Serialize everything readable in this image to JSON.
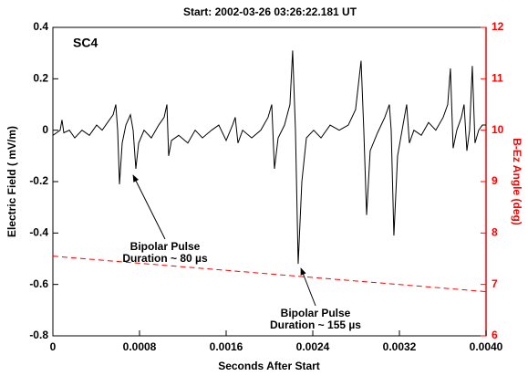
{
  "chart_data": {
    "type": "line",
    "title": "Start:  2002-03-26 03:26:22.181 UT",
    "xlabel": "Seconds After Start",
    "ylabel": "Electric Field ( mV/m)",
    "y2label": "B-Ez Angle (deg)",
    "panel_label": "SC4",
    "annotations": [
      [
        "Bipolar Pulse",
        "Duration ~ 80 µs"
      ],
      [
        "Bipolar Pulse",
        "Duration ~ 155 µs"
      ]
    ],
    "xlim": [
      0,
      0.004
    ],
    "xticks": [
      0,
      0.0008,
      0.0016,
      0.0024,
      0.0032,
      {
        "value": 0.004,
        "label": "0.0040"
      }
    ],
    "ylim": [
      -0.8,
      0.4
    ],
    "yticks": [
      -0.8,
      -0.6,
      -0.4,
      -0.2,
      0,
      0.2,
      0.4
    ],
    "y2lim": [
      6,
      12
    ],
    "y2ticks": [
      6,
      7,
      8,
      9,
      10,
      11,
      12
    ],
    "y2color": "#ff0000",
    "series": [
      {
        "color": "#000000",
        "dashed": false,
        "x": [
          0,
          3.4e-05,
          6.7e-05,
          8.4e-05,
          0.000101,
          0.000152,
          0.000202,
          0.000269,
          0.000337,
          0.000404,
          0.000455,
          0.000505,
          0.000556,
          0.000581,
          0.000598,
          0.000615,
          0.00064,
          0.000674,
          0.000716,
          0.000741,
          0.000766,
          0.000792,
          0.000842,
          0.000909,
          0.000977,
          0.001027,
          0.001053,
          0.001069,
          0.001095,
          0.001162,
          0.001246,
          0.001314,
          0.001381,
          0.001465,
          0.001532,
          0.0016,
          0.001659,
          0.001684,
          0.001709,
          0.001752,
          0.001836,
          0.00192,
          0.001987,
          0.002021,
          0.002046,
          0.00208,
          0.002139,
          0.002189,
          0.002214,
          0.00224,
          0.002265,
          0.002299,
          0.002341,
          0.002408,
          0.002476,
          0.00256,
          0.002644,
          0.002728,
          0.002795,
          0.002846,
          0.002871,
          0.002897,
          0.00293,
          0.002998,
          0.003065,
          0.003107,
          0.003124,
          0.003149,
          0.003183,
          0.003233,
          0.003267,
          0.003292,
          0.003334,
          0.003402,
          0.003469,
          0.003536,
          0.003604,
          0.003646,
          0.003671,
          0.003696,
          0.00373,
          0.003772,
          0.003797,
          0.003823,
          0.003848,
          0.003873,
          0.003898,
          0.003932,
          0.003966,
          0.004
        ],
        "values": [
          -0.02,
          -0.01,
          0.0,
          0.04,
          -0.01,
          0.0,
          -0.03,
          0.0,
          -0.02,
          0.02,
          0.0,
          0.03,
          0.06,
          0.1,
          0.0,
          -0.21,
          -0.05,
          0.02,
          0.06,
          0.0,
          -0.15,
          -0.05,
          0.0,
          -0.03,
          0.02,
          0.05,
          0.1,
          -0.1,
          -0.04,
          -0.02,
          -0.05,
          0.0,
          -0.03,
          0.0,
          0.02,
          -0.04,
          0.02,
          0.05,
          -0.05,
          0.0,
          -0.03,
          0.0,
          0.05,
          0.1,
          -0.15,
          -0.03,
          0.02,
          0.1,
          0.31,
          0.0,
          -0.52,
          -0.2,
          -0.03,
          0.0,
          -0.03,
          0.02,
          0.0,
          0.02,
          0.08,
          0.27,
          0.0,
          -0.33,
          -0.08,
          -0.01,
          0.05,
          0.1,
          0.0,
          -0.41,
          -0.1,
          0.02,
          0.1,
          -0.05,
          0.0,
          -0.02,
          0.03,
          0.0,
          0.05,
          0.1,
          0.24,
          -0.07,
          0.0,
          0.05,
          0.1,
          -0.08,
          0.0,
          0.25,
          -0.05,
          0.0,
          0.02,
          0.02
        ]
      },
      {
        "color": "#ff0000",
        "dashed": true,
        "axis": "y2",
        "x": [
          0,
          0.004
        ],
        "values": [
          7.55,
          6.86
        ]
      }
    ]
  }
}
